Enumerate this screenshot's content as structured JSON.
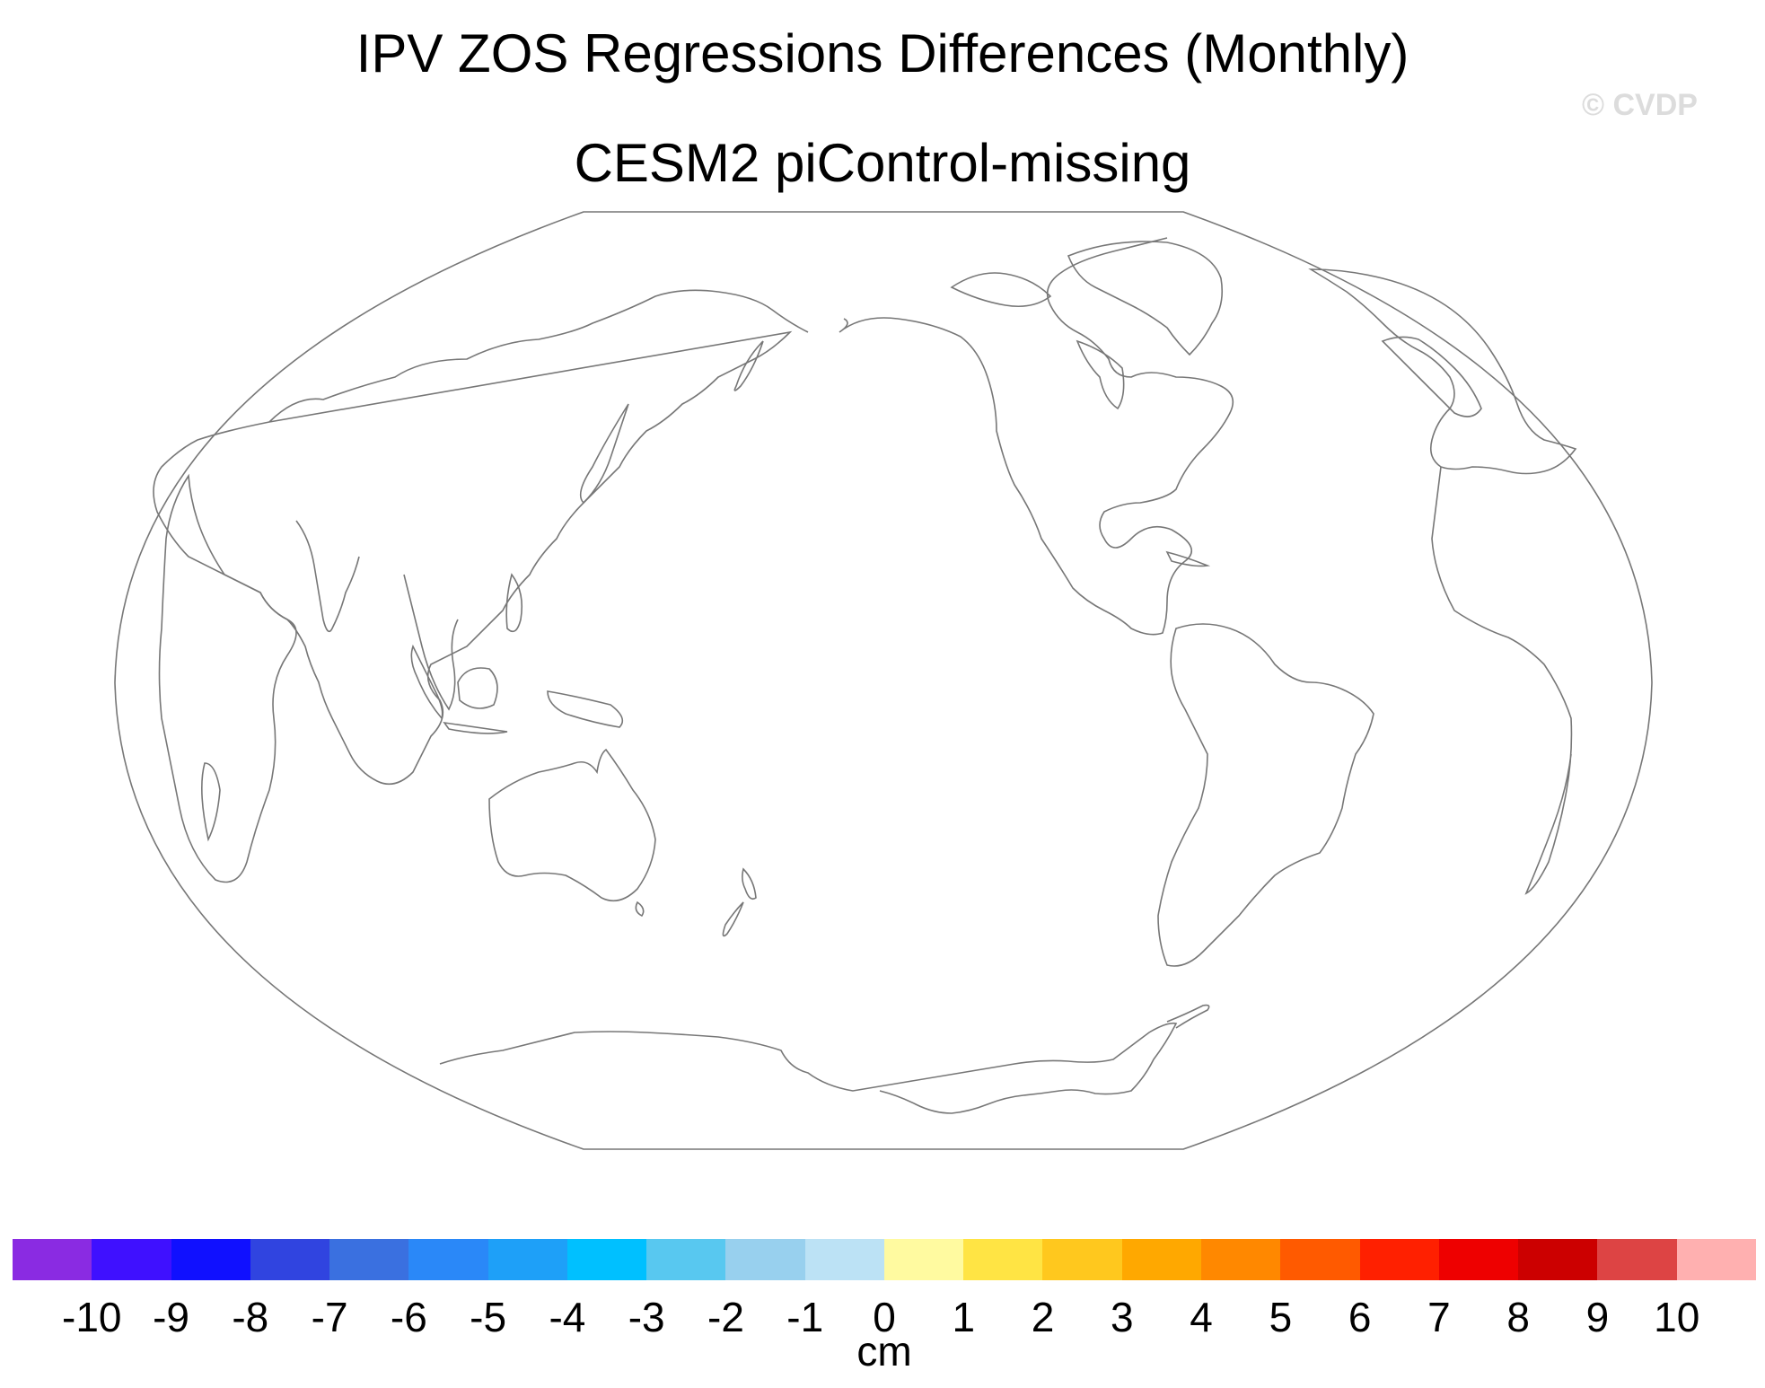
{
  "title": "IPV ZOS Regressions Differences (Monthly)",
  "subtitle": "CESM2 piControl-missing",
  "watermark": "© CVDP",
  "colorbar": {
    "units": "cm",
    "colors": [
      "#8a2be2",
      "#3f10ff",
      "#1010ff",
      "#3044e0",
      "#3a70e0",
      "#2a88f8",
      "#1ea0f8",
      "#00c0ff",
      "#58c8f0",
      "#98d0ee",
      "#bce2f5",
      "#fffaa0",
      "#ffe444",
      "#ffc81e",
      "#ffa800",
      "#ff8800",
      "#ff5a00",
      "#ff2000",
      "#ee0000",
      "#cc0000",
      "#dd4444",
      "#ffb0b0"
    ],
    "labels": [
      "-10",
      "-9",
      "-8",
      "-7",
      "-6",
      "-5",
      "-4",
      "-3",
      "-2",
      "-1",
      "0",
      "1",
      "2",
      "3",
      "4",
      "5",
      "6",
      "7",
      "8",
      "9",
      "10"
    ]
  },
  "chart_data": {
    "type": "map",
    "title": "IPV ZOS Regressions Differences (Monthly)",
    "subtitle": "CESM2 piControl-missing",
    "projection": "Winkel-like world (Pacific-centered)",
    "field": "no data shown (all missing)",
    "colorbar_levels": [
      -10,
      -9,
      -8,
      -7,
      -6,
      -5,
      -4,
      -3,
      -2,
      -1,
      0,
      1,
      2,
      3,
      4,
      5,
      6,
      7,
      8,
      9,
      10
    ],
    "units": "cm"
  }
}
